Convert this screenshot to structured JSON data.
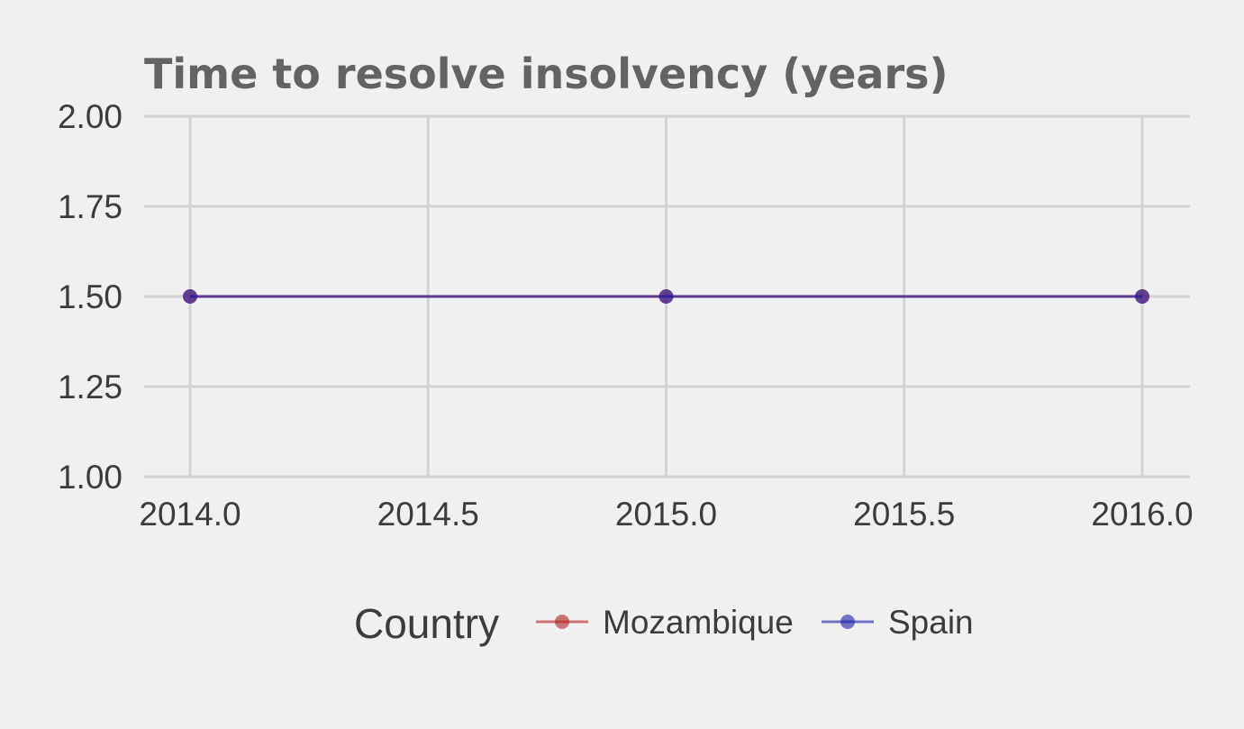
{
  "chart_data": {
    "type": "line",
    "title": "Time to resolve insolvency (years)",
    "xlabel": "",
    "ylabel": "",
    "xlim": [
      2014.0,
      2016.0
    ],
    "ylim": [
      1.0,
      2.0
    ],
    "x_ticks": [
      2014.0,
      2014.5,
      2015.0,
      2015.5,
      2016.0
    ],
    "x_tick_labels": [
      "2014.0",
      "2014.5",
      "2015.0",
      "2015.5",
      "2016.0"
    ],
    "y_ticks": [
      1.0,
      1.25,
      1.5,
      1.75,
      2.0
    ],
    "y_tick_labels": [
      "1.00",
      "1.25",
      "1.50",
      "1.75",
      "2.00"
    ],
    "grid": true,
    "legend": {
      "title": "Country",
      "position": "bottom"
    },
    "series": [
      {
        "name": "Mozambique",
        "color": "#b22222",
        "x": [
          2014,
          2015,
          2016
        ],
        "values": [
          1.5,
          1.5,
          1.5
        ]
      },
      {
        "name": "Spain",
        "color": "#1c1ca8",
        "x": [
          2014,
          2015,
          2016
        ],
        "values": [
          1.5,
          1.5,
          1.5
        ]
      }
    ]
  }
}
